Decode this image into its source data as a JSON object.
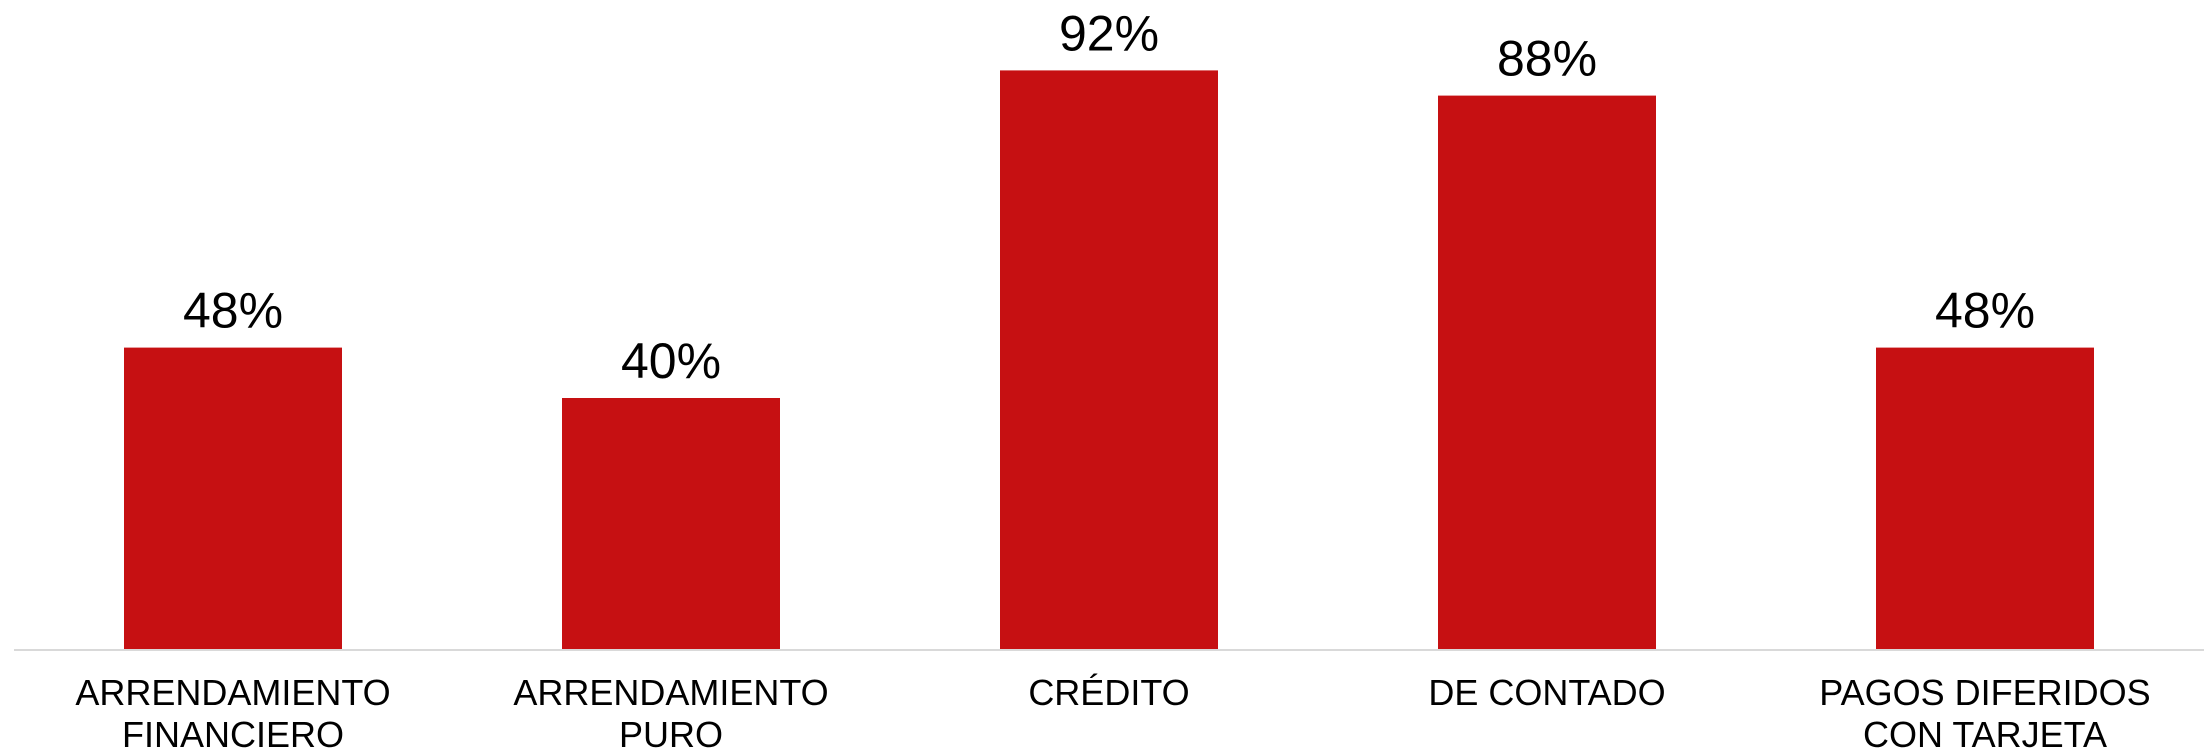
{
  "chart_data": {
    "type": "bar",
    "categories": [
      "ARRENDAMIENTO FINANCIERO",
      "ARRENDAMIENTO PURO",
      "CRÉDITO",
      "DE CONTADO",
      "PAGOS DIFERIDOS CON TARJETA"
    ],
    "values": [
      48,
      40,
      92,
      88,
      48
    ],
    "value_labels": [
      "48%",
      "40%",
      "92%",
      "88%",
      "48%"
    ],
    "color": "#c61012",
    "ylim": [
      0,
      100
    ]
  }
}
